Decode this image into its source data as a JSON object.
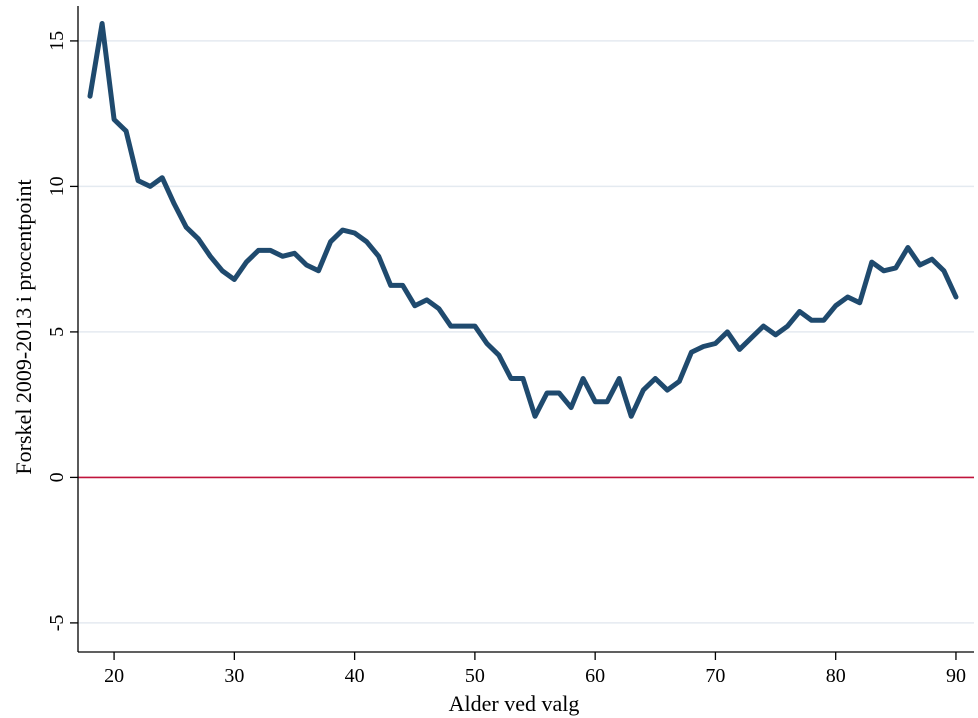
{
  "chart_data": {
    "type": "line",
    "title": "",
    "xlabel": "Alder ved valg",
    "ylabel": "Forskel 2009-2013 i procentpoint",
    "xlim": [
      17,
      91.5
    ],
    "ylim": [
      -6.0,
      16.2
    ],
    "xticks": [
      20,
      30,
      40,
      50,
      60,
      70,
      80,
      90
    ],
    "yticks": [
      -5,
      0,
      5,
      10,
      15
    ],
    "grid": "horizontal",
    "legend": "none",
    "reference_line": {
      "y": 0,
      "color": "#c0143c"
    },
    "colors": {
      "line": "#1f4a6e",
      "grid": "#e4eaf0",
      "axis": "#000000"
    },
    "series": [
      {
        "x": [
          18,
          19,
          20,
          21,
          22,
          23,
          24,
          25,
          26,
          27,
          28,
          29,
          30,
          31,
          32,
          33,
          34,
          35,
          36,
          37,
          38,
          39,
          40,
          41,
          42,
          43,
          44,
          45,
          46,
          47,
          48,
          49,
          50,
          51,
          52,
          53,
          54,
          55,
          56,
          57,
          58,
          59,
          60,
          61,
          62,
          63,
          64,
          65,
          66,
          67,
          68,
          69,
          70,
          71,
          72,
          73,
          74,
          75,
          76,
          77,
          78,
          79,
          80,
          81,
          82,
          83,
          84,
          85,
          86,
          87,
          88,
          89,
          90
        ],
        "values": [
          13.1,
          15.6,
          12.3,
          11.9,
          10.2,
          10.0,
          10.3,
          9.4,
          8.6,
          8.2,
          7.6,
          7.1,
          6.8,
          7.4,
          7.8,
          7.8,
          7.6,
          7.7,
          7.3,
          7.1,
          8.1,
          8.5,
          8.4,
          8.1,
          7.6,
          6.6,
          6.6,
          5.9,
          6.1,
          5.8,
          5.2,
          5.2,
          5.2,
          4.6,
          4.2,
          3.4,
          3.4,
          2.1,
          2.9,
          2.9,
          2.4,
          3.4,
          2.6,
          2.6,
          3.4,
          2.1,
          3.0,
          3.4,
          3.0,
          3.3,
          4.3,
          4.5,
          4.6,
          5.0,
          4.4,
          4.8,
          5.2,
          4.9,
          5.2,
          5.7,
          5.4,
          5.4,
          5.9,
          6.2,
          6.0,
          7.4,
          7.1,
          7.2,
          7.9,
          7.3,
          7.5,
          7.1,
          6.2
        ]
      }
    ]
  }
}
